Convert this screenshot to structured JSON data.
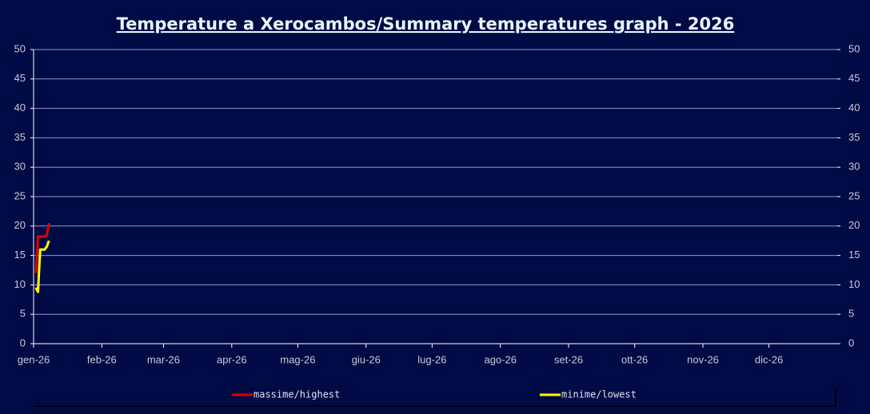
{
  "chart_data": {
    "type": "line",
    "title": "Temperature a Xerocambos/Summary temperatures graph - 2026",
    "x": [
      1,
      2,
      3,
      4,
      5,
      6,
      7
    ],
    "xlim": [
      0,
      365
    ],
    "xticks": [
      {
        "value": 0,
        "label": "gen-26"
      },
      {
        "value": 31,
        "label": "feb-26"
      },
      {
        "value": 59,
        "label": "mar-26"
      },
      {
        "value": 90,
        "label": "apr-26"
      },
      {
        "value": 120,
        "label": "mag-26"
      },
      {
        "value": 151,
        "label": "giu-26"
      },
      {
        "value": 181,
        "label": "lug-26"
      },
      {
        "value": 212,
        "label": "ago-26"
      },
      {
        "value": 243,
        "label": "set-26"
      },
      {
        "value": 273,
        "label": "ott-26"
      },
      {
        "value": 304,
        "label": "nov-26"
      },
      {
        "value": 334,
        "label": "dic-26"
      }
    ],
    "ylim": [
      0,
      50
    ],
    "yticks": [
      0,
      5,
      10,
      15,
      20,
      25,
      30,
      35,
      40,
      45,
      50
    ],
    "y2lim": [
      0,
      50
    ],
    "y2ticks": [
      0,
      5,
      10,
      15,
      20,
      25,
      30,
      35,
      40,
      45,
      50
    ],
    "grid": true,
    "series": [
      {
        "name": "massime/highest",
        "color": "#e00000",
        "values": [
          12,
          18.2,
          18.2,
          18.2,
          18.2,
          18.5,
          20.5
        ]
      },
      {
        "name": "minime/lowest",
        "color": "#ffff00",
        "values": [
          9.5,
          8.8,
          16,
          16,
          16,
          16.5,
          17.5
        ]
      }
    ]
  }
}
